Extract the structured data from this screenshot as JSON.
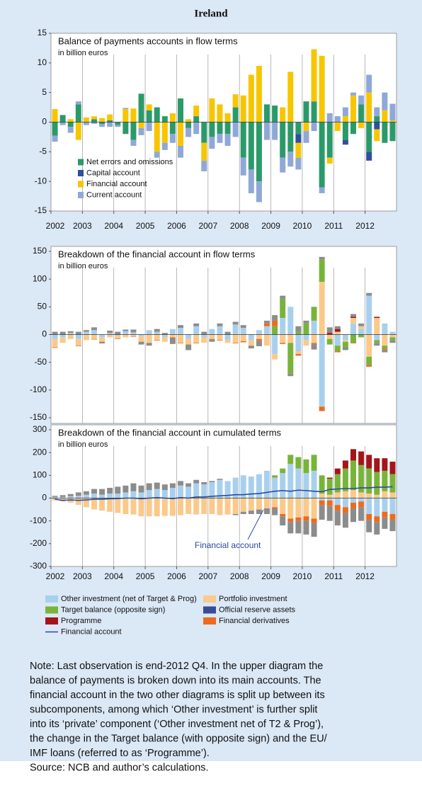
{
  "title": "Ireland",
  "chart_data": [
    {
      "type": "bar",
      "title": "Balance of payments accounts in flow terms",
      "subtitle": "in billion euros",
      "xlim": [
        2002,
        2013
      ],
      "xticks": [
        2002,
        2003,
        2004,
        2005,
        2006,
        2007,
        2008,
        2009,
        2010,
        2011,
        2012
      ],
      "ylim": [
        -15,
        15
      ],
      "yticks": [
        -15,
        -10,
        -5,
        0,
        5,
        10,
        15
      ],
      "stacked": true,
      "legend": "lower-left",
      "series": [
        {
          "name": "Net errors and omissions",
          "color": "#2b9a6a",
          "values": [
            -2.3,
            1.2,
            -0.8,
            3,
            0,
            0.5,
            -0.3,
            0.3,
            -0.5,
            -2,
            -3,
            4.8,
            2,
            2.5,
            1,
            -2,
            4,
            -1,
            1,
            -3.5,
            -2.5,
            -2,
            -2,
            2.5,
            -6,
            -8,
            -10,
            3,
            2.8,
            -6,
            -5,
            -2,
            3.5,
            3.5,
            -11,
            -6,
            0,
            -3,
            -2,
            3,
            -5,
            1,
            -3.5,
            -3.2
          ]
        },
        {
          "name": "Capital account",
          "color": "#2e4f9e",
          "values": [
            0,
            0,
            0,
            0,
            0,
            0,
            0,
            0,
            0,
            0,
            0,
            0,
            0,
            0,
            0,
            0,
            0,
            0,
            0,
            0,
            0,
            0,
            0,
            0,
            0,
            0,
            0,
            0,
            0,
            0,
            0,
            -1.5,
            0,
            0,
            0,
            0,
            0,
            -0.8,
            0,
            0,
            -1.5,
            -1.2,
            0,
            0
          ]
        },
        {
          "name": "Financial account",
          "color": "#f7c600",
          "values": [
            2.2,
            0,
            0.5,
            -3,
            0.8,
            0.5,
            0.7,
            1,
            0,
            2.2,
            2.3,
            -1,
            1,
            -5,
            -3.5,
            1.5,
            -4,
            0.5,
            1.8,
            -3,
            4,
            3,
            1.5,
            2.2,
            4.5,
            8,
            9.5,
            0,
            0,
            2.5,
            8.5,
            -2.5,
            -1.5,
            8.8,
            11.2,
            -1,
            -1.5,
            1,
            4.5,
            -1,
            5,
            -2,
            2,
            0.3
          ]
        },
        {
          "name": "Current account",
          "color": "#8fa8d8",
          "values": [
            -1,
            -0.5,
            -1,
            0.5,
            -0.5,
            -0.3,
            -0.5,
            -0.8,
            -0.3,
            0.2,
            -1,
            -1.2,
            -1.5,
            -1,
            -1.2,
            -1.5,
            -2,
            -1.5,
            -2,
            -1.8,
            -2,
            -1.5,
            -2,
            -2.5,
            -3,
            -4,
            -3.5,
            -3,
            -3,
            -2.5,
            -2.5,
            -2,
            -2,
            -1.5,
            -1,
            1.5,
            1,
            1.5,
            0.5,
            1.5,
            3,
            1.5,
            3,
            2.8
          ]
        }
      ]
    },
    {
      "type": "bar",
      "title": "Breakdown of the financial account in flow terms",
      "subtitle": "in billion euros",
      "xlim": [
        2002,
        2013
      ],
      "ylim": [
        -150,
        150
      ],
      "yticks": [
        -150,
        -100,
        -50,
        0,
        50,
        100,
        150
      ],
      "stacked": true,
      "series": [
        {
          "color": "#a8d0ee",
          "values": [
            -8,
            -5,
            3,
            -8,
            5,
            8,
            -5,
            3,
            -2,
            6,
            4,
            -3,
            8,
            5,
            -5,
            10,
            12,
            -8,
            15,
            -5,
            10,
            15,
            -10,
            18,
            12,
            -10,
            8,
            15,
            -35,
            30,
            50,
            -30,
            -10,
            25,
            -130,
            0,
            -20,
            -10,
            20,
            10,
            70,
            -10,
            20,
            5
          ]
        },
        {
          "color": "#fbc98a",
          "values": [
            -15,
            -10,
            -8,
            -12,
            -10,
            -8,
            -8,
            -5,
            -5,
            -5,
            -3,
            -10,
            -15,
            -10,
            -8,
            -5,
            -15,
            -10,
            -15,
            -10,
            -8,
            -10,
            -5,
            -15,
            -12,
            -10,
            -8,
            -20,
            -10,
            -15,
            -15,
            -5,
            -10,
            -15,
            95,
            -8,
            5,
            -3,
            10,
            5,
            -40,
            30,
            -20,
            -5
          ]
        },
        {
          "color": "#78b43a",
          "values": [
            0,
            0,
            0,
            0,
            0,
            0,
            0,
            0,
            0,
            0,
            0,
            0,
            0,
            0,
            0,
            0,
            0,
            0,
            0,
            0,
            0,
            0,
            0,
            0,
            0,
            0,
            0,
            0,
            15,
            35,
            -55,
            5,
            20,
            25,
            40,
            -10,
            -10,
            -10,
            -15,
            -5,
            -15,
            -5,
            -5,
            -5
          ]
        },
        {
          "color": "#3a4c96",
          "values": [
            0,
            0,
            0,
            0,
            0,
            0,
            0,
            0,
            0,
            0,
            0,
            0,
            0,
            0,
            0,
            0,
            0,
            0,
            0,
            0,
            0,
            0,
            0,
            0,
            0,
            0,
            0,
            0,
            0,
            0,
            0,
            0,
            0,
            0,
            0,
            0,
            0,
            0,
            0,
            0,
            0,
            0,
            0,
            0
          ]
        },
        {
          "color": "#a3151b",
          "values": [
            0,
            0,
            0,
            0,
            0,
            0,
            0,
            0,
            0,
            0,
            0,
            0,
            0,
            0,
            0,
            0,
            0,
            0,
            0,
            0,
            0,
            0,
            0,
            0,
            0,
            0,
            0,
            0,
            0,
            0,
            0,
            0,
            0,
            0,
            0,
            3,
            5,
            0,
            2,
            0,
            0,
            2,
            0,
            0
          ]
        },
        {
          "color": "#ec6b1e",
          "values": [
            -1,
            0,
            0,
            -1,
            0,
            -1,
            0,
            0,
            -1,
            0,
            -1,
            0,
            0,
            -1,
            0,
            -2,
            -1,
            0,
            -1,
            0,
            0,
            -1,
            0,
            -1,
            -2,
            0,
            -3,
            5,
            10,
            -2,
            0,
            -3,
            0,
            -2,
            -8,
            0,
            -2,
            0,
            -1,
            0,
            -3,
            0,
            -2,
            0
          ]
        },
        {
          "color": "#8c8c8c",
          "values": [
            5,
            5,
            3,
            5,
            3,
            5,
            -3,
            4,
            5,
            3,
            5,
            -5,
            -5,
            5,
            3,
            -10,
            5,
            -10,
            5,
            5,
            -5,
            5,
            5,
            5,
            5,
            -5,
            -10,
            5,
            10,
            5,
            -5,
            10,
            5,
            -10,
            5,
            10,
            5,
            -5,
            5,
            5,
            5,
            -5,
            -5,
            -5
          ]
        }
      ]
    },
    {
      "type": "bar",
      "title": "Breakdown of the financial account in cumulated terms",
      "subtitle": "in billion euros",
      "xlim": [
        2002,
        2013
      ],
      "xticks": [
        2002,
        2003,
        2004,
        2005,
        2006,
        2007,
        2008,
        2009,
        2010,
        2011,
        2012
      ],
      "ylim": [
        -300,
        300
      ],
      "yticks": [
        -300,
        -200,
        -100,
        0,
        100,
        200,
        300
      ],
      "stacked": true,
      "legend": "below",
      "annotation": "Financial account",
      "series": [
        {
          "name": "Other investment (net of Target & Prog)",
          "color": "#a8d0ee",
          "values": [
            5,
            5,
            8,
            10,
            15,
            20,
            15,
            20,
            20,
            25,
            30,
            25,
            35,
            40,
            35,
            45,
            55,
            50,
            65,
            60,
            70,
            80,
            75,
            90,
            100,
            95,
            105,
            120,
            90,
            110,
            150,
            130,
            110,
            120,
            -10,
            -10,
            -30,
            -40,
            -20,
            -15,
            -70,
            -80,
            -60,
            -70
          ]
        },
        {
          "name": "Portfolio investment",
          "color": "#fbc98a",
          "values": [
            -10,
            -15,
            -20,
            -30,
            -40,
            -50,
            -55,
            -60,
            -65,
            -70,
            -72,
            -80,
            -80,
            -80,
            -78,
            -78,
            -75,
            -70,
            -72,
            -70,
            -70,
            -75,
            -72,
            -70,
            -60,
            -55,
            -50,
            -45,
            -40,
            -70,
            -90,
            -85,
            -80,
            -90,
            20,
            15,
            25,
            30,
            35,
            25,
            20,
            15,
            30,
            25
          ]
        },
        {
          "name": "Target balance (opposite sign)",
          "color": "#78b43a",
          "values": [
            0,
            0,
            0,
            0,
            0,
            0,
            0,
            0,
            0,
            0,
            0,
            0,
            0,
            0,
            0,
            0,
            0,
            0,
            0,
            0,
            0,
            0,
            0,
            0,
            0,
            0,
            0,
            0,
            10,
            20,
            40,
            50,
            60,
            70,
            80,
            70,
            80,
            100,
            130,
            120,
            110,
            100,
            90,
            80
          ]
        },
        {
          "name": "Official reserve assets",
          "color": "#3a4c96",
          "values": [
            0,
            0,
            0,
            0,
            0,
            0,
            0,
            0,
            0,
            0,
            0,
            0,
            0,
            0,
            0,
            0,
            0,
            0,
            0,
            0,
            0,
            0,
            0,
            0,
            0,
            0,
            0,
            0,
            0,
            0,
            0,
            0,
            0,
            0,
            0,
            0,
            0,
            0,
            0,
            0,
            0,
            0,
            0,
            0
          ]
        },
        {
          "name": "Programme",
          "color": "#a3151b",
          "values": [
            0,
            0,
            0,
            0,
            0,
            0,
            0,
            0,
            0,
            0,
            0,
            0,
            0,
            0,
            0,
            0,
            0,
            0,
            0,
            0,
            0,
            0,
            0,
            0,
            0,
            0,
            0,
            0,
            0,
            0,
            0,
            0,
            0,
            0,
            0,
            5,
            25,
            35,
            50,
            60,
            60,
            60,
            55,
            55
          ]
        },
        {
          "name": "Financial derivatives",
          "color": "#ec6b1e",
          "values": [
            0,
            0,
            0,
            0,
            0,
            0,
            0,
            0,
            0,
            0,
            0,
            0,
            0,
            0,
            0,
            0,
            0,
            0,
            0,
            0,
            0,
            0,
            0,
            0,
            0,
            0,
            0,
            0,
            -5,
            -10,
            -15,
            -15,
            -20,
            -20,
            -20,
            -25,
            -25,
            -25,
            -25,
            -25,
            -25,
            -25,
            -25,
            -25
          ]
        },
        {
          "color": "#8c8c8c",
          "values": [
            5,
            8,
            10,
            15,
            15,
            20,
            25,
            25,
            30,
            30,
            35,
            30,
            30,
            28,
            25,
            20,
            20,
            15,
            15,
            10,
            5,
            5,
            0,
            -5,
            -10,
            -15,
            -20,
            -25,
            -30,
            -40,
            -50,
            -55,
            -60,
            -60,
            -65,
            -65,
            -65,
            -65,
            -60,
            -60,
            -55,
            -55,
            -50,
            -50
          ]
        }
      ],
      "line": {
        "name": "Financial account",
        "color": "#2a4aa0",
        "values": [
          -5,
          -10,
          -8,
          -10,
          -8,
          -5,
          -5,
          -3,
          -2,
          0,
          0,
          -3,
          0,
          2,
          0,
          -2,
          2,
          0,
          5,
          5,
          8,
          10,
          12,
          15,
          15,
          18,
          20,
          25,
          30,
          33,
          30,
          35,
          33,
          30,
          28,
          38,
          40,
          42,
          42,
          45,
          45,
          48,
          48,
          50
        ]
      }
    }
  ],
  "note": [
    "Note: Last observation is end-2012 Q4. In the upper diagram the",
    "balance of payments is broken down into its main accounts. The",
    "financial account in the two other diagrams is split up between its",
    "subcomponents, among which ‘Other investment’ is further split",
    "into its ‘private’ component (‘Other investment net of T2 & Prog’),",
    "the change in the Target balance (with opposite sign) and the EU/",
    "IMF loans (referred to as ‘Programme’).",
    "Source: NCB and author’s calculations."
  ]
}
